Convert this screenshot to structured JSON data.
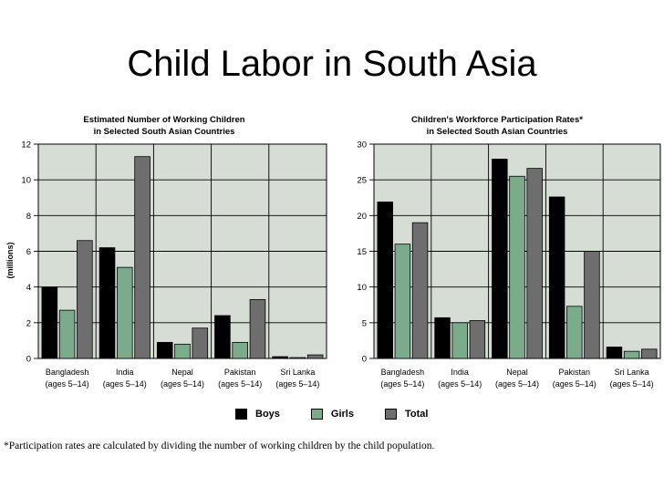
{
  "slide": {
    "title": "Child Labor in South Asia",
    "footnote": "*Participation rates are calculated by dividing the number of working children by the child population."
  },
  "colors": {
    "boys": "#000000",
    "girls": "#7aab8a",
    "total": "#6e6e6e",
    "plot_bg": "#d6ddd4",
    "grid": "#000000"
  },
  "legend": [
    {
      "name": "Boys",
      "color": "#000000"
    },
    {
      "name": "Girls",
      "color": "#7aab8a"
    },
    {
      "name": "Total",
      "color": "#6e6e6e"
    }
  ],
  "chart_data": [
    {
      "type": "bar",
      "title": "Estimated Number of Working Children\nin Selected South Asian Countries",
      "ylabel": "(millions)",
      "ylim": [
        0,
        12
      ],
      "yticks": [
        0,
        2,
        4,
        6,
        8,
        10,
        12
      ],
      "categories": [
        "Bangladesh\n(ages 5–14)",
        "India\n(ages 5–14)",
        "Nepal\n(ages 5–14)",
        "Pakistan\n(ages 5–14)",
        "Sri Lanka\n(ages 5–14)"
      ],
      "series": [
        {
          "name": "Boys",
          "values": [
            4.0,
            6.2,
            0.9,
            2.4,
            0.1
          ]
        },
        {
          "name": "Girls",
          "values": [
            2.7,
            5.1,
            0.8,
            0.9,
            0.05
          ]
        },
        {
          "name": "Total",
          "values": [
            6.6,
            11.3,
            1.7,
            3.3,
            0.2
          ]
        }
      ],
      "grid": true
    },
    {
      "type": "bar",
      "title": "Children's Workforce Participation Rates*\nin Selected South Asian Countries",
      "ylabel": "",
      "ylim": [
        0,
        30
      ],
      "yticks": [
        0,
        5,
        10,
        15,
        20,
        25,
        30
      ],
      "categories": [
        "Bangladesh\n(ages 5–14)",
        "India\n(ages 5–14)",
        "Nepal\n(ages 5–14)",
        "Pakistan\n(ages 5–14)",
        "Sri Lanka\n(ages 5–14)"
      ],
      "series": [
        {
          "name": "Boys",
          "values": [
            21.9,
            5.7,
            27.9,
            22.6,
            1.6
          ]
        },
        {
          "name": "Girls",
          "values": [
            16.0,
            5.0,
            25.5,
            7.3,
            1.0
          ]
        },
        {
          "name": "Total",
          "values": [
            19.0,
            5.3,
            26.6,
            15.0,
            1.3
          ]
        }
      ],
      "grid": true
    }
  ]
}
